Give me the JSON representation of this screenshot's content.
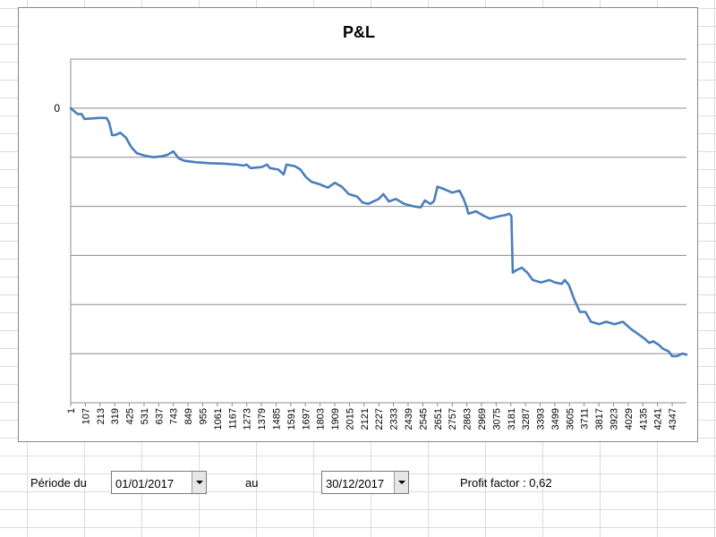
{
  "chart_data": {
    "type": "line",
    "title": "P&L",
    "xlabel": "",
    "ylabel": "",
    "y_tick_labels": [
      "0"
    ],
    "x_ticks": [
      1,
      107,
      213,
      319,
      425,
      531,
      637,
      743,
      849,
      955,
      1061,
      1167,
      1273,
      1379,
      1485,
      1591,
      1697,
      1803,
      1909,
      2015,
      2121,
      2227,
      2333,
      2439,
      2545,
      2651,
      2757,
      2863,
      2969,
      3075,
      3181,
      3287,
      3393,
      3499,
      3605,
      3711,
      3817,
      3923,
      4029,
      4135,
      4241,
      4347
    ],
    "xlim": [
      1,
      4450
    ],
    "ylim": [
      -6,
      1
    ],
    "grid": true,
    "legend": "none",
    "color": "#4a7ebb",
    "series": [
      {
        "points": [
          [
            1,
            0
          ],
          [
            50,
            -0.12
          ],
          [
            80,
            -0.12
          ],
          [
            100,
            -0.22
          ],
          [
            200,
            -0.2
          ],
          [
            260,
            -0.2
          ],
          [
            280,
            -0.3
          ],
          [
            300,
            -0.55
          ],
          [
            320,
            -0.55
          ],
          [
            360,
            -0.5
          ],
          [
            400,
            -0.6
          ],
          [
            440,
            -0.8
          ],
          [
            480,
            -0.92
          ],
          [
            540,
            -0.97
          ],
          [
            600,
            -1.0
          ],
          [
            660,
            -0.98
          ],
          [
            700,
            -0.95
          ],
          [
            743,
            -0.88
          ],
          [
            780,
            -1.02
          ],
          [
            820,
            -1.07
          ],
          [
            900,
            -1.1
          ],
          [
            1000,
            -1.12
          ],
          [
            1100,
            -1.13
          ],
          [
            1200,
            -1.15
          ],
          [
            1250,
            -1.17
          ],
          [
            1273,
            -1.15
          ],
          [
            1300,
            -1.22
          ],
          [
            1380,
            -1.2
          ],
          [
            1420,
            -1.15
          ],
          [
            1440,
            -1.22
          ],
          [
            1500,
            -1.25
          ],
          [
            1540,
            -1.35
          ],
          [
            1560,
            -1.15
          ],
          [
            1620,
            -1.18
          ],
          [
            1660,
            -1.25
          ],
          [
            1700,
            -1.4
          ],
          [
            1740,
            -1.5
          ],
          [
            1800,
            -1.55
          ],
          [
            1860,
            -1.62
          ],
          [
            1909,
            -1.52
          ],
          [
            1960,
            -1.6
          ],
          [
            2010,
            -1.75
          ],
          [
            2070,
            -1.8
          ],
          [
            2110,
            -1.92
          ],
          [
            2150,
            -1.95
          ],
          [
            2227,
            -1.85
          ],
          [
            2260,
            -1.75
          ],
          [
            2300,
            -1.9
          ],
          [
            2350,
            -1.85
          ],
          [
            2410,
            -1.95
          ],
          [
            2480,
            -2.0
          ],
          [
            2530,
            -2.02
          ],
          [
            2560,
            -1.88
          ],
          [
            2600,
            -1.95
          ],
          [
            2625,
            -1.9
          ],
          [
            2651,
            -1.6
          ],
          [
            2700,
            -1.65
          ],
          [
            2757,
            -1.72
          ],
          [
            2810,
            -1.68
          ],
          [
            2840,
            -1.85
          ],
          [
            2860,
            -2.0
          ],
          [
            2875,
            -2.15
          ],
          [
            2930,
            -2.1
          ],
          [
            2990,
            -2.2
          ],
          [
            3030,
            -2.25
          ],
          [
            3100,
            -2.2
          ],
          [
            3140,
            -2.18
          ],
          [
            3170,
            -2.15
          ],
          [
            3185,
            -2.2
          ],
          [
            3195,
            -3.35
          ],
          [
            3220,
            -3.3
          ],
          [
            3260,
            -3.25
          ],
          [
            3300,
            -3.35
          ],
          [
            3340,
            -3.5
          ],
          [
            3400,
            -3.55
          ],
          [
            3460,
            -3.5
          ],
          [
            3500,
            -3.55
          ],
          [
            3550,
            -3.58
          ],
          [
            3570,
            -3.5
          ],
          [
            3600,
            -3.6
          ],
          [
            3640,
            -3.9
          ],
          [
            3680,
            -4.15
          ],
          [
            3720,
            -4.15
          ],
          [
            3760,
            -4.35
          ],
          [
            3820,
            -4.4
          ],
          [
            3870,
            -4.35
          ],
          [
            3930,
            -4.4
          ],
          [
            3990,
            -4.35
          ],
          [
            4050,
            -4.5
          ],
          [
            4100,
            -4.6
          ],
          [
            4150,
            -4.7
          ],
          [
            4180,
            -4.78
          ],
          [
            4210,
            -4.75
          ],
          [
            4250,
            -4.82
          ],
          [
            4280,
            -4.9
          ],
          [
            4320,
            -4.95
          ],
          [
            4347,
            -5.05
          ],
          [
            4380,
            -5.05
          ],
          [
            4420,
            -5.0
          ],
          [
            4450,
            -5.02
          ]
        ]
      }
    ]
  },
  "controls": {
    "periode_label": "Période du",
    "date_from": "01/01/2017",
    "au_label": "au",
    "date_to": "30/12/2017",
    "profit_factor": "Profit factor : 0,62"
  }
}
